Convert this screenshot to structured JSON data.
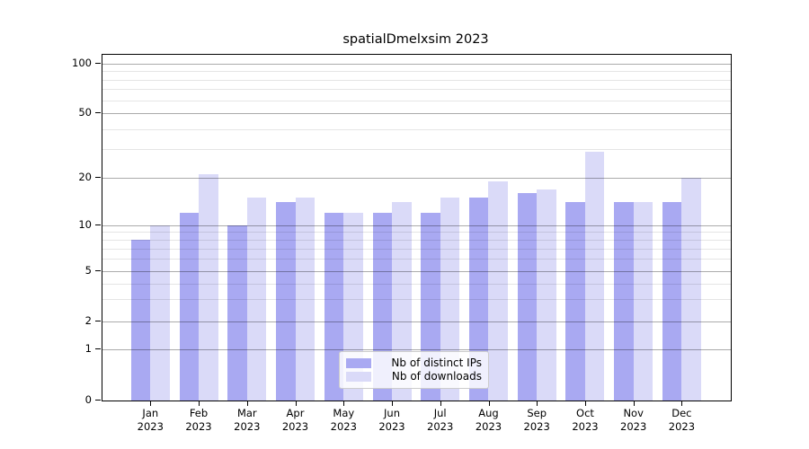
{
  "chart_data": {
    "type": "bar",
    "title": "spatialDmelxsim 2023",
    "categories": [
      "Jan",
      "Feb",
      "Mar",
      "Apr",
      "May",
      "Jun",
      "Jul",
      "Aug",
      "Sep",
      "Oct",
      "Nov",
      "Dec"
    ],
    "x_tick_year": "2023",
    "series": [
      {
        "name": "Nb of distinct IPs",
        "color": "#a9a9f2",
        "values": [
          8,
          12,
          10,
          14,
          12,
          12,
          12,
          15,
          16,
          14,
          14,
          14
        ]
      },
      {
        "name": "Nb of downloads",
        "color": "#dadaf8",
        "values": [
          10,
          21,
          15,
          15,
          12,
          14,
          15,
          19,
          17,
          29,
          14,
          20
        ]
      }
    ],
    "y_axis": {
      "scale": "symlog",
      "range": [
        0,
        100
      ],
      "major_ticks": [
        0,
        1,
        2,
        5,
        10,
        20,
        50,
        100
      ],
      "minor_ticks": [
        3,
        4,
        6,
        7,
        8,
        9,
        30,
        40,
        60,
        70,
        80,
        90
      ],
      "tick_fractions": {
        "0": 0,
        "1": 0.1472,
        "2": 0.2276,
        "5": 0.3745,
        "10": 0.5079,
        "20": 0.6436,
        "50": 0.8313,
        "100": 0.974
      }
    },
    "x_axis": {
      "grid": false
    },
    "grid": {
      "major_on": true,
      "minor_on": true,
      "drawn_above_bars": true
    },
    "legend": {
      "position": "lower-center",
      "entries": [
        "Nb of distinct IPs",
        "Nb of downloads"
      ]
    }
  }
}
